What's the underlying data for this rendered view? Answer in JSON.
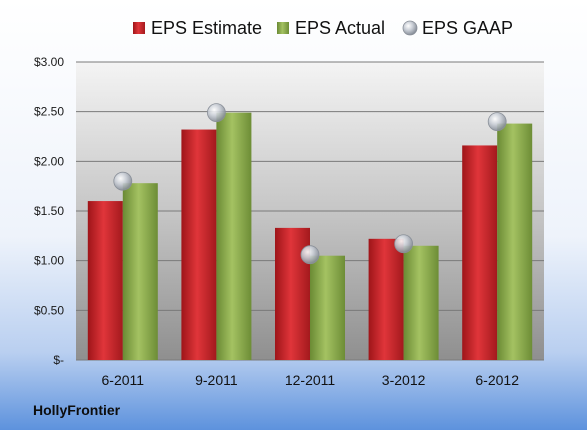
{
  "company": "HollyFrontier",
  "chart_data": {
    "type": "bar",
    "title": "",
    "xlabel": "",
    "ylabel": "",
    "categories": [
      "6-2011",
      "9-2011",
      "12-2011",
      "3-2012",
      "6-2012"
    ],
    "series": [
      {
        "name": "EPS Estimate",
        "kind": "bar",
        "color": "#d0242a",
        "values": [
          1.6,
          2.32,
          1.33,
          1.22,
          2.16
        ]
      },
      {
        "name": "EPS Actual",
        "kind": "bar",
        "color": "#8cac4a",
        "values": [
          1.78,
          2.49,
          1.05,
          1.15,
          2.38
        ]
      },
      {
        "name": "EPS GAAP",
        "kind": "marker",
        "color": "#b9bec6",
        "values": [
          1.8,
          2.49,
          1.06,
          1.17,
          2.4
        ]
      }
    ],
    "ylim": [
      0,
      3.0
    ],
    "yticks": [
      0,
      0.5,
      1.0,
      1.5,
      2.0,
      2.5,
      3.0
    ],
    "ytick_labels": [
      "$-",
      "$0.50",
      "$1.00",
      "$1.50",
      "$2.00",
      "$2.50",
      "$3.00"
    ],
    "grid": true,
    "legend_position": "top"
  }
}
